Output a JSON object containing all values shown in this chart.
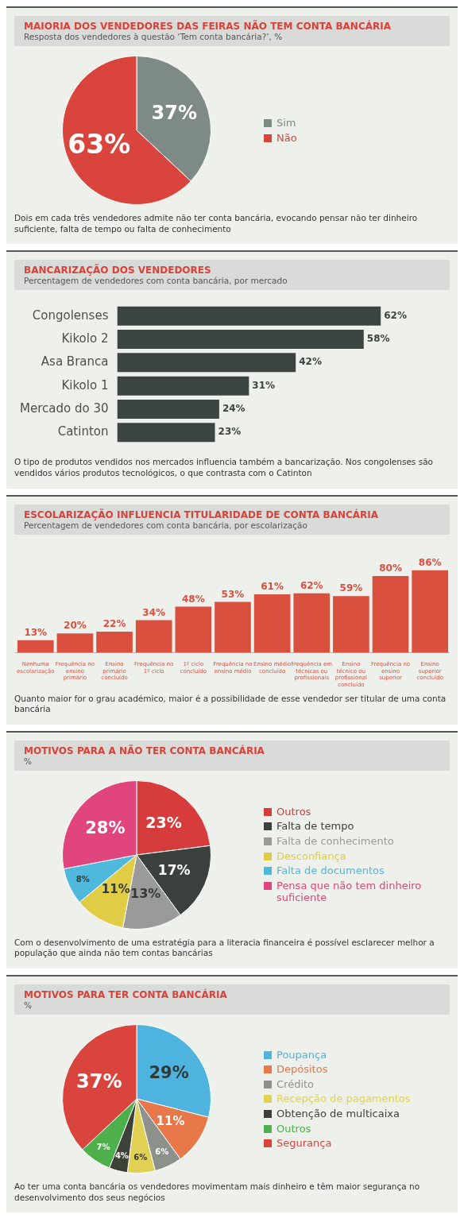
{
  "chart_data": [
    {
      "type": "pie",
      "title": "MAIORIA DOS VENDEDORES DAS FEIRAS NÃO TEM CONTA BANCÁRIA",
      "subtitle": "Resposta dos vendedores à questão ‘Tem conta bancária?’, %",
      "categories": [
        "Sim",
        "Não"
      ],
      "values": [
        37,
        63
      ],
      "colors": [
        "#7d8a85",
        "#d9453c"
      ],
      "value_labels": [
        "37%",
        "63%"
      ],
      "legend": "right",
      "annotations": [
        "Dois em cada três vendedores admite não ter conta bancária, evocando pensar não ter dinheiro suficiente, falta de tempo ou falta de conhecimento"
      ]
    },
    {
      "type": "bar",
      "orientation": "horizontal",
      "title": "BANCARIZAÇÃO DOS VENDEDORES",
      "subtitle": "Percentagem de vendedores com conta bancária, por mercado",
      "categories": [
        "Congolenses",
        "Kikolo 2",
        "Asa Branca",
        "Kikolo 1",
        "Mercado do 30",
        "Catinton"
      ],
      "values": [
        62,
        58,
        42,
        31,
        24,
        23
      ],
      "color": "#3d4540",
      "value_labels": [
        "62%",
        "58%",
        "42%",
        "31%",
        "24%",
        "23%"
      ],
      "tick_labels": "y",
      "annotations": [
        "O tipo de produtos vendidos nos mercados influencia também a bancarização. Nos congolenses são vendidos vários produtos tecnológicos, o que contrasta com o Catinton"
      ]
    },
    {
      "type": "bar",
      "title": "ESCOLARIZAÇÃO INFLUENCIA TITULARIDADE DE CONTA BANCÁRIA",
      "subtitle": "Percentagem de vendedores com conta bancária, por escolarização",
      "categories": [
        "Nenhuma escolarização",
        "Frequência no ensino primário",
        "Ensino primário concluído",
        "Frequência no 1º ciclo",
        "1º ciclo concluído",
        "Frequência no ensino médio",
        "Ensino médio concluído",
        "Frequência em técnicas ou profissionais",
        "Ensino técnico ou profissional concluído",
        "Frequência no ensino superior",
        "Ensino superior concluído"
      ],
      "values": [
        13,
        20,
        22,
        34,
        48,
        53,
        61,
        62,
        59,
        80,
        86
      ],
      "color": "#d9503f",
      "value_labels": [
        "13%",
        "20%",
        "22%",
        "34%",
        "48%",
        "53%",
        "61%",
        "62%",
        "59%",
        "80%",
        "86%"
      ],
      "tick_labels": "x",
      "annotations": [
        "Quanto maior for o grau académico, maior é a possibilidade de esse vendedor ser titular de uma conta bancária"
      ]
    },
    {
      "type": "pie",
      "title": "MOTIVOS PARA A NÃO TER CONTA BANCÁRIA",
      "subtitle": "%",
      "categories": [
        "Outros",
        "Falta de tempo",
        "Falta de conhecimento",
        "Desconfiança",
        "Falta de documentos",
        "Pensa que não tem dinheiro suficiente"
      ],
      "values": [
        23,
        17,
        13,
        11,
        8,
        28
      ],
      "colors": [
        "#d63c3c",
        "#3a403b",
        "#9a9a98",
        "#e0cc45",
        "#4fb8dd",
        "#e0457e"
      ],
      "value_labels": [
        "23%",
        "17%",
        "13%",
        "11%",
        "8%",
        "28%"
      ],
      "legend": "right",
      "annotations": [
        "Com o desenvolvimento de uma estratégia para a literacia financeira é possível esclarecer melhor a população que ainda não tem contas bancárias"
      ]
    },
    {
      "type": "pie",
      "title": "MOTIVOS PARA TER CONTA BANCÁRIA",
      "subtitle": "%",
      "categories": [
        "Poupança",
        "Depósitos",
        "Crédito",
        "Recepção de pagamentos",
        "Obtenção de multicaixa",
        "Outros",
        "Segurança"
      ],
      "values": [
        29,
        11,
        6,
        6,
        4,
        7,
        37
      ],
      "colors": [
        "#4fb3e0",
        "#e8774a",
        "#8c918c",
        "#e0d054",
        "#3d4238",
        "#4db04a",
        "#d9453c"
      ],
      "value_labels": [
        "29%",
        "11%",
        "6%",
        "6%",
        "4%",
        "7%",
        "37%"
      ],
      "legend": "right",
      "annotations": [
        "Ao ter uma conta bancária os vendedores movimentam mais dinheiro e têm maior segurança no desenvolvimento dos seus negócios"
      ]
    }
  ]
}
